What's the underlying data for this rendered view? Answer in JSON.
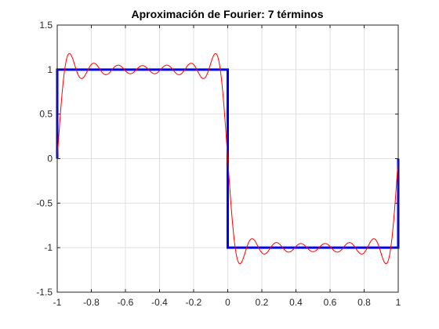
{
  "chart_data": {
    "type": "line",
    "title": "Aproximación de Fourier: 7 términos",
    "xlabel": "",
    "ylabel": "",
    "xlim": [
      -1,
      1
    ],
    "ylim": [
      -1.5,
      1.5
    ],
    "x_ticks": [
      -1,
      -0.8,
      -0.6,
      -0.4,
      -0.2,
      0,
      0.2,
      0.4,
      0.6,
      0.8,
      1
    ],
    "y_ticks": [
      -1.5,
      -1,
      -0.5,
      0,
      0.5,
      1,
      1.5
    ],
    "x_tick_labels": [
      "-1",
      "-0.8",
      "-0.6",
      "-0.4",
      "-0.2",
      "0",
      "0.2",
      "0.4",
      "0.6",
      "0.8",
      "1"
    ],
    "y_tick_labels": [
      "-1.5",
      "-1",
      "-0.5",
      "0",
      "0.5",
      "1",
      "1.5"
    ],
    "grid": true,
    "series": [
      {
        "color": "#0000ff",
        "style": "square-wave",
        "x": [
          -1,
          -1,
          0,
          0,
          1,
          1
        ],
        "y": [
          0,
          1,
          1,
          -1,
          -1,
          0
        ]
      },
      {
        "color": "#ff0000",
        "style": "fourier-partial-sum",
        "terms": 7,
        "harmonics": [
          1,
          3,
          5,
          7,
          9,
          11,
          13
        ],
        "x_range": [
          -1,
          1
        ]
      }
    ]
  },
  "colors": {
    "axis": "#262626",
    "grid": "#dfdfdf",
    "background": "#ffffff"
  }
}
